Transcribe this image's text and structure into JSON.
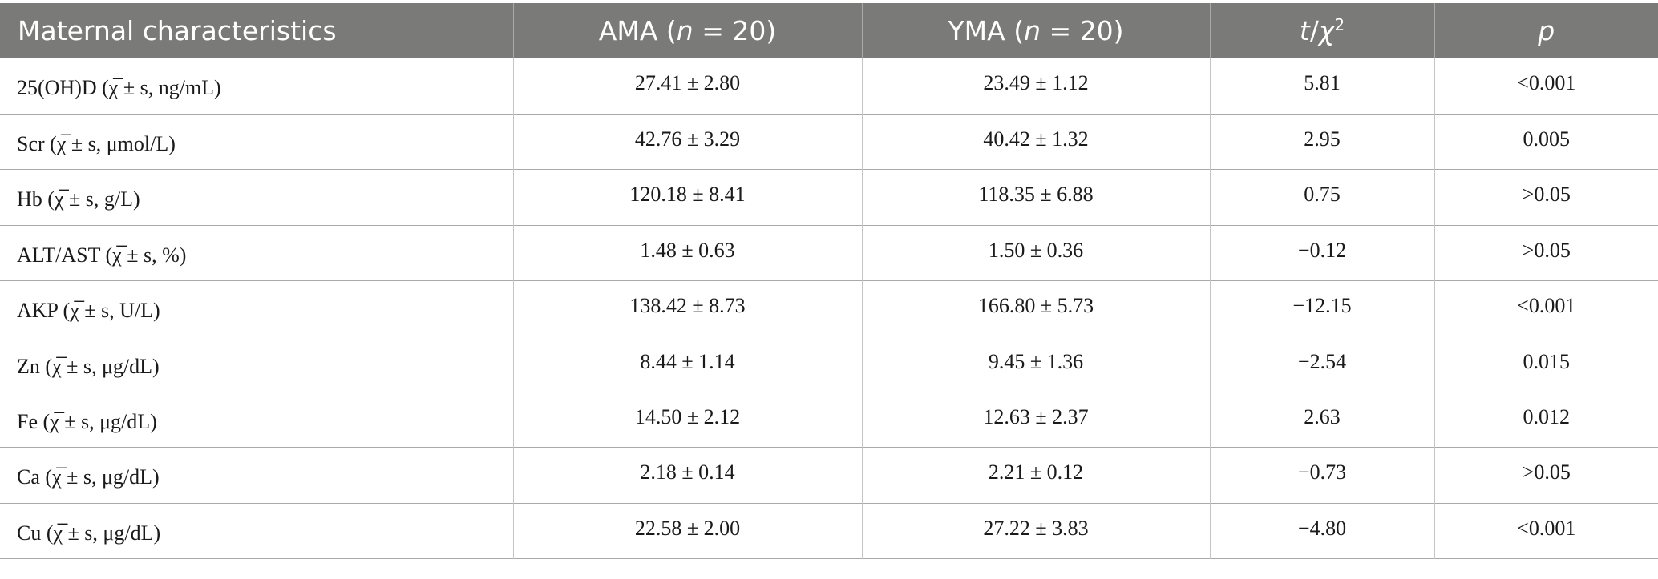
{
  "table": {
    "headers": {
      "characteristics": "Maternal characteristics",
      "ama_prefix": "AMA (",
      "ama_n": "n",
      "ama_suffix": " = 20)",
      "yma_prefix": "YMA (",
      "yma_n": "n",
      "yma_suffix": " = 20)",
      "stat_t": "t",
      "stat_sep": "/",
      "stat_chi": "χ",
      "stat_sup": "2",
      "p": "p"
    },
    "rows": [
      {
        "label": "25(OH)D (χ̅ ± s, ng/mL)",
        "ama": "27.41 ± 2.80",
        "yma": "23.49 ± 1.12",
        "stat": "5.81",
        "p": "<0.001"
      },
      {
        "label": "Scr (χ̅ ± s, μmol/L)",
        "ama": "42.76 ± 3.29",
        "yma": "40.42 ± 1.32",
        "stat": "2.95",
        "p": "0.005"
      },
      {
        "label": "Hb (χ̅ ± s, g/L)",
        "ama": "120.18 ± 8.41",
        "yma": "118.35 ± 6.88",
        "stat": "0.75",
        "p": ">0.05"
      },
      {
        "label": "ALT/AST (χ̅ ± s, %)",
        "ama": "1.48 ± 0.63",
        "yma": "1.50 ± 0.36",
        "stat": "−0.12",
        "p": ">0.05"
      },
      {
        "label": "AKP (χ̅ ± s, U/L)",
        "ama": "138.42 ± 8.73",
        "yma": "166.80 ± 5.73",
        "stat": "−12.15",
        "p": "<0.001"
      },
      {
        "label": "Zn (χ̅ ± s, μg/dL)",
        "ama": "8.44 ± 1.14",
        "yma": "9.45 ± 1.36",
        "stat": "−2.54",
        "p": "0.015"
      },
      {
        "label": "Fe (χ̅ ± s, μg/dL)",
        "ama": "14.50 ± 2.12",
        "yma": "12.63 ± 2.37",
        "stat": "2.63",
        "p": "0.012"
      },
      {
        "label": "Ca (χ̅ ± s, μg/dL)",
        "ama": "2.18 ± 0.14",
        "yma": "2.21 ± 0.12",
        "stat": "−0.73",
        "p": ">0.05"
      },
      {
        "label": "Cu (χ̅ ± s, μg/dL)",
        "ama": "22.58 ± 2.00",
        "yma": "27.22 ± 3.83",
        "stat": "−4.80",
        "p": "<0.001"
      }
    ]
  },
  "colors": {
    "header_bg": "#7a7a79",
    "header_text": "#ffffff",
    "rule": "#a9a9a9",
    "body_text": "#1a1a1a"
  }
}
